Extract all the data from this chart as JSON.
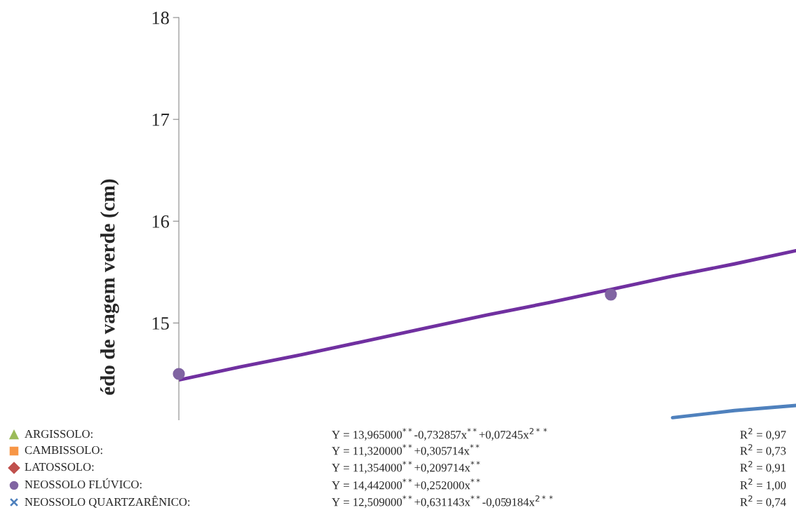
{
  "chart_data": {
    "type": "scatter",
    "ylabel": "édo de vagem verde (cm)",
    "categories": [
      null,
      null,
      null,
      null,
      null,
      null,
      null,
      null,
      null,
      null,
      null
    ],
    "ylim": [
      14.05,
      18
    ],
    "yticks": [
      {
        "value": 15,
        "label": "15"
      },
      {
        "value": 16,
        "label": "16"
      },
      {
        "value": 17,
        "label": "17"
      },
      {
        "value": 18,
        "label": "18"
      }
    ],
    "tick_labels": "y",
    "grid": false,
    "legend": "bottom",
    "series": [
      {
        "name": "ARGISSOLO:",
        "color": "#9bbb59",
        "marker": "triangle",
        "values": [
          null,
          null,
          null,
          null,
          null,
          null,
          null,
          null,
          null,
          null,
          null
        ]
      },
      {
        "name": "CAMBISSOLO:",
        "color": "#f79646",
        "marker": "square",
        "values": [
          null,
          null,
          null,
          null,
          null,
          null,
          null,
          null,
          null,
          null,
          null
        ]
      },
      {
        "name": "LATOSSOLO:",
        "color": "#c0504d",
        "marker": "diamond",
        "values": [
          null,
          null,
          null,
          null,
          null,
          null,
          null,
          null,
          null,
          null,
          null
        ]
      },
      {
        "name": "NEOSSOLO FLÚVICO:",
        "color": "#8064a2",
        "marker": "circle",
        "values": [
          14.5,
          null,
          null,
          null,
          null,
          null,
          null,
          15.28,
          null,
          null,
          null
        ]
      },
      {
        "name": "NEOSSOLO QUARTZARÊNICO:",
        "color": "#4f81bd",
        "marker": "cross",
        "values": [
          null,
          null,
          null,
          null,
          null,
          null,
          null,
          null,
          null,
          null,
          null
        ]
      },
      {
        "type": "line",
        "color": "#7030a0",
        "marker": "none",
        "values": [
          14.44,
          14.57,
          14.69,
          14.82,
          14.95,
          15.08,
          15.2,
          15.33,
          15.46,
          15.58,
          15.71
        ]
      },
      {
        "type": "line",
        "color": "#4f81bd",
        "marker": "none",
        "values": [
          null,
          null,
          null,
          null,
          null,
          null,
          null,
          null,
          14.07,
          14.14,
          14.19
        ]
      }
    ],
    "annotations": [
      "Y = 13,965000$^{**}$-0,732857x$^{**}$+0,07245x$^{2**}$",
      "R$^{2}$ = 0,97",
      "Y = 11,320000$^{**}$+0,305714x$^{**}$",
      "R$^{2}$ = 0,73",
      "Y = 11,354000$^{**}$+0,209714x$^{**}$",
      "R$^{2}$ = 0,91",
      "Y = 14,442000$^{**}$+0,252000x$^{**}$",
      "R$^{2}$ = 1,00",
      "Y = 12,509000$^{**}$+0,631143x$^{**}$-0,059184x$^{2**}$",
      "R$^{2}$ = 0,74"
    ]
  }
}
